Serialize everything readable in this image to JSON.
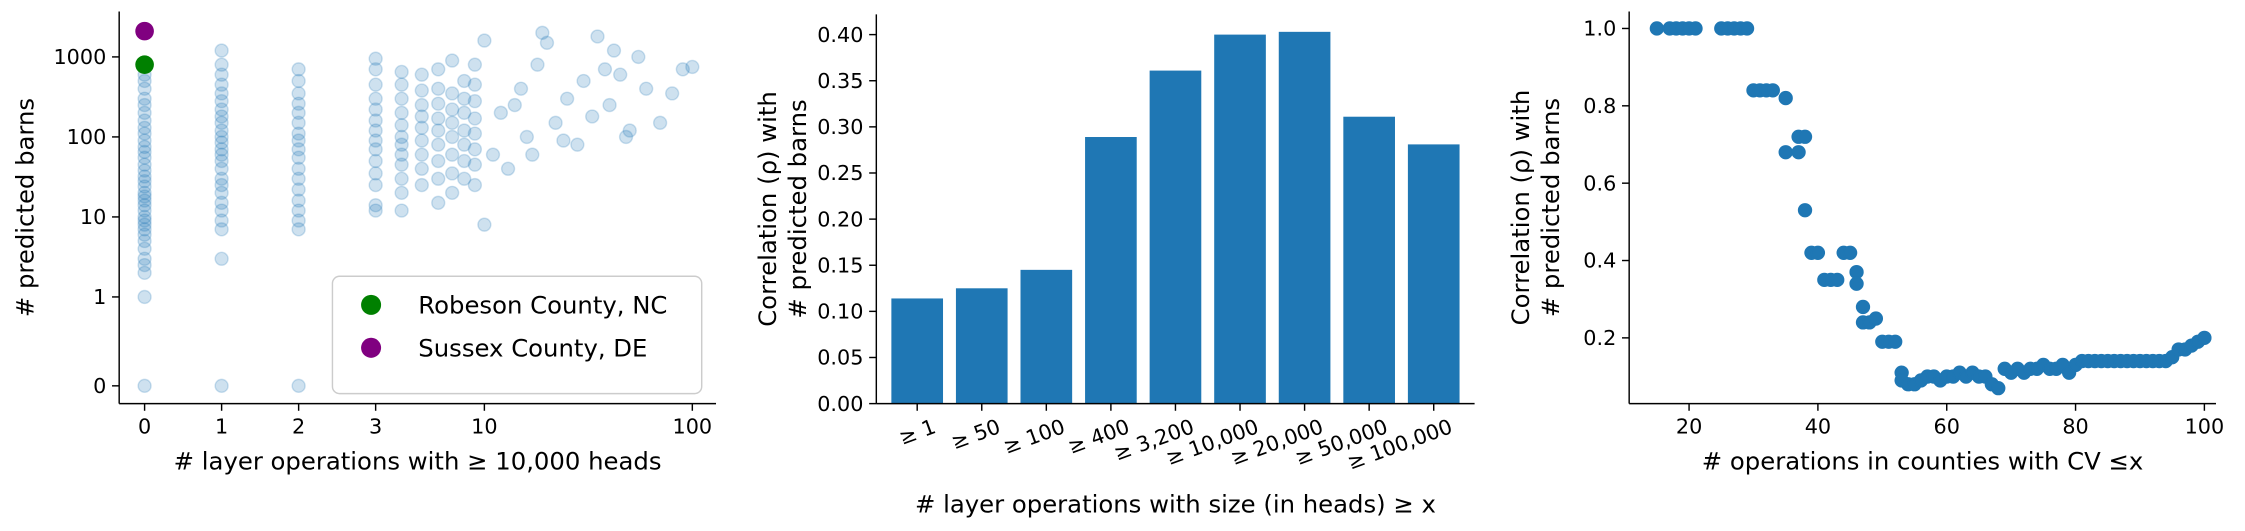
{
  "chart_data": [
    {
      "type": "scatter",
      "xlabel": "# layer operations with ≥ 10,000 heads",
      "ylabel": "# predicted barns",
      "xscale": "symlog",
      "xlinthresh": 3,
      "yscale": "symlog",
      "ylinthresh": 1,
      "xlim": [
        -0.33,
        130
      ],
      "ylim": [
        -0.2,
        3700
      ],
      "xticks": [
        0,
        1,
        2,
        3,
        10,
        100
      ],
      "yticks": [
        0,
        1,
        10,
        100,
        1000
      ],
      "legend": "lower right",
      "series": [
        {
          "color": "#1f77b4",
          "alpha": 0.22,
          "x": [
            0,
            0,
            0,
            0,
            0,
            0,
            0,
            0,
            0,
            0,
            0,
            0,
            0,
            0,
            0,
            0,
            0,
            0,
            0,
            0,
            0,
            0,
            0,
            0,
            0,
            0,
            0,
            0,
            0,
            0,
            0,
            0,
            0,
            0,
            0,
            1,
            1,
            1,
            1,
            1,
            1,
            1,
            1,
            1,
            1,
            1,
            1,
            1,
            1,
            1,
            1,
            1,
            1,
            1,
            1,
            1,
            1,
            1,
            1,
            1,
            2,
            2,
            2,
            2,
            2,
            2,
            2,
            2,
            2,
            2,
            2,
            2,
            2,
            2,
            2,
            2,
            2,
            2,
            3,
            3,
            3,
            3,
            3,
            3,
            3,
            3,
            3,
            3,
            3,
            3,
            3,
            3,
            4,
            4,
            4,
            4,
            4,
            4,
            4,
            4,
            4,
            4,
            4,
            4,
            5,
            5,
            5,
            5,
            5,
            5,
            5,
            5,
            5,
            6,
            6,
            6,
            6,
            6,
            6,
            6,
            6,
            6,
            7,
            7,
            7,
            7,
            7,
            7,
            7,
            7,
            8,
            8,
            8,
            8,
            8,
            8,
            8,
            9,
            9,
            9,
            9,
            9,
            9,
            9,
            9,
            11,
            12,
            13,
            15,
            16,
            18,
            20,
            22,
            25,
            28,
            30,
            35,
            40,
            45,
            50,
            55,
            60,
            70,
            80,
            90,
            10,
            10,
            14,
            17,
            19,
            24,
            33,
            38,
            42,
            48,
            100
          ],
          "y": [
            0,
            1,
            2,
            2.5,
            3,
            4,
            5,
            6,
            7,
            8,
            9,
            10,
            12,
            14,
            16,
            18,
            20,
            24,
            28,
            32,
            38,
            45,
            55,
            65,
            75,
            90,
            110,
            130,
            160,
            200,
            250,
            300,
            400,
            500,
            600,
            0,
            3,
            7,
            9,
            12,
            15,
            20,
            25,
            30,
            40,
            50,
            60,
            70,
            85,
            100,
            120,
            150,
            180,
            220,
            280,
            350,
            450,
            600,
            800,
            1200,
            0,
            7,
            9,
            12,
            16,
            22,
            30,
            40,
            55,
            70,
            90,
            110,
            150,
            200,
            260,
            350,
            500,
            700,
            12,
            14,
            25,
            35,
            50,
            70,
            90,
            120,
            160,
            220,
            300,
            450,
            700,
            950,
            12,
            20,
            30,
            45,
            60,
            80,
            100,
            140,
            200,
            300,
            450,
            650,
            25,
            40,
            60,
            90,
            130,
            180,
            250,
            380,
            600,
            15,
            30,
            50,
            80,
            120,
            170,
            260,
            400,
            700,
            20,
            35,
            60,
            100,
            150,
            220,
            350,
            900,
            30,
            50,
            80,
            120,
            200,
            300,
            500,
            25,
            45,
            70,
            110,
            170,
            280,
            450,
            800,
            60,
            200,
            40,
            400,
            100,
            800,
            1500,
            150,
            300,
            80,
            500,
            1800,
            250,
            600,
            120,
            1000,
            400,
            150,
            350,
            700,
            8,
            1600,
            250,
            60,
            2000,
            90,
            180,
            700,
            1200,
            100,
            750
          ]
        },
        {
          "name": "Robeson County, NC",
          "color": "green",
          "x": [
            0
          ],
          "y": [
            800
          ]
        },
        {
          "name": "Sussex County, DE",
          "color": "purple",
          "x": [
            0
          ],
          "y": [
            2100
          ]
        }
      ]
    },
    {
      "type": "bar",
      "xlabel": "# layer operations with size (in heads) ≥ x",
      "ylabel": [
        "Correlation (ρ) with",
        "# predicted barns"
      ],
      "color": "#1f77b4",
      "categories": [
        "≥ 1",
        "≥ 50",
        "≥ 100",
        "≥ 400",
        "≥ 3,200",
        "≥ 10,000",
        "≥ 20,000",
        "≥ 50,000",
        "≥ 100,000"
      ],
      "values": [
        0.114,
        0.125,
        0.145,
        0.289,
        0.361,
        0.4,
        0.403,
        0.311,
        0.281
      ],
      "ylim": [
        0,
        0.422
      ],
      "yticks": [
        {
          "value": 0,
          "label": "0.00"
        },
        0.05,
        {
          "value": 0.1,
          "label": "0.10"
        },
        0.15,
        {
          "value": 0.2,
          "label": "0.20"
        },
        0.25,
        {
          "value": 0.3,
          "label": "0.30"
        },
        0.35,
        {
          "value": 0.4,
          "label": "0.40"
        }
      ]
    },
    {
      "type": "scatter",
      "xlabel": "# operations in counties with CV ≤x",
      "ylabel": [
        "Correlation (ρ) with",
        "# predicted barns"
      ],
      "xlim": [
        10.7,
        101.8
      ],
      "ylim": [
        0.03,
        1.044
      ],
      "xticks": [
        20,
        40,
        60,
        80,
        100
      ],
      "yticks": [
        0.2,
        0.4,
        0.6,
        0.8,
        {
          "value": 1,
          "label": "1.0"
        }
      ],
      "series": [
        {
          "color": "#1f77b4",
          "alpha": 1,
          "x": [
            15,
            17,
            18,
            19,
            20,
            21,
            25,
            26,
            27,
            28,
            29,
            30,
            31,
            32,
            33,
            35,
            35,
            37,
            37,
            38,
            38,
            39,
            40,
            41,
            42,
            43,
            44,
            45,
            46,
            46,
            47,
            47,
            48,
            49,
            50,
            51,
            52,
            53,
            53,
            54,
            55,
            56,
            57,
            58,
            59,
            60,
            61,
            62,
            63,
            64,
            65,
            66,
            67,
            68,
            69,
            70,
            71,
            72,
            73,
            74,
            75,
            76,
            77,
            78,
            79,
            80,
            81,
            82,
            83,
            84,
            85,
            86,
            87,
            88,
            89,
            90,
            91,
            92,
            93,
            94,
            95,
            96,
            97,
            98,
            99,
            100
          ],
          "y": [
            1,
            1,
            1,
            1,
            1,
            1,
            1,
            1,
            1,
            1,
            1,
            0.84,
            0.84,
            0.84,
            0.84,
            0.82,
            0.68,
            0.68,
            0.72,
            0.72,
            0.53,
            0.42,
            0.42,
            0.35,
            0.35,
            0.35,
            0.42,
            0.42,
            0.37,
            0.34,
            0.28,
            0.24,
            0.24,
            0.25,
            0.19,
            0.19,
            0.19,
            0.11,
            0.09,
            0.08,
            0.08,
            0.09,
            0.1,
            0.1,
            0.09,
            0.1,
            0.1,
            0.11,
            0.1,
            0.11,
            0.1,
            0.1,
            0.08,
            0.07,
            0.12,
            0.11,
            0.12,
            0.11,
            0.12,
            0.12,
            0.13,
            0.12,
            0.12,
            0.13,
            0.11,
            0.13,
            0.14,
            0.14,
            0.14,
            0.14,
            0.14,
            0.14,
            0.14,
            0.14,
            0.14,
            0.14,
            0.14,
            0.14,
            0.14,
            0.14,
            0.15,
            0.17,
            0.17,
            0.18,
            0.19,
            0.2
          ]
        }
      ]
    }
  ]
}
